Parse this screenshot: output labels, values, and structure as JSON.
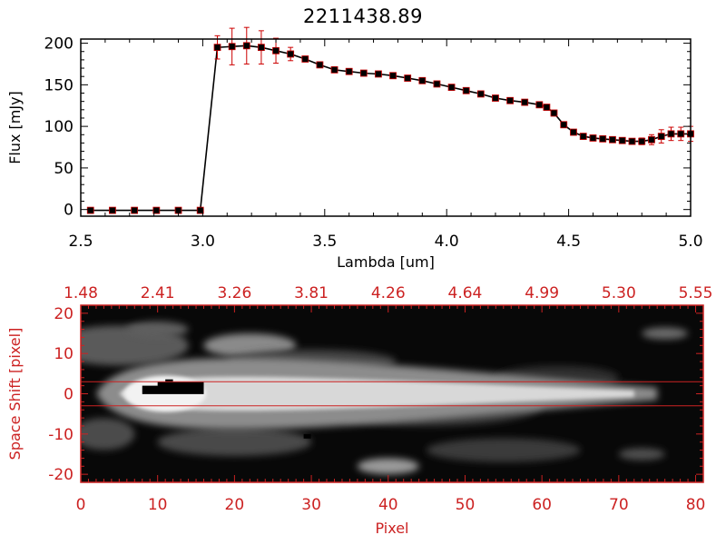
{
  "title": "2211438.89",
  "colors": {
    "axis": "#000000",
    "error_bar": "#cc0000",
    "marker": "#000000",
    "image_frame": "#cc2222",
    "image_text": "#cc2222",
    "guide_lines": "#cc2222"
  },
  "chart_data": [
    {
      "type": "line",
      "title": "2211438.89",
      "xlabel": "Lambda [um]",
      "ylabel": "Flux [mJy]",
      "xlim": [
        2.5,
        5.0
      ],
      "ylim": [
        -8,
        205
      ],
      "xticks": [
        "2.5",
        "3.0",
        "3.5",
        "4.0",
        "4.5",
        "5.0"
      ],
      "yticks": [
        "0",
        "50",
        "100",
        "150",
        "200"
      ],
      "xtick_values": [
        2.5,
        3.0,
        3.5,
        4.0,
        4.5,
        5.0
      ],
      "ytick_values": [
        0,
        50,
        100,
        150,
        200
      ],
      "grid": false,
      "series": [
        {
          "marker": "square",
          "x": [
            2.54,
            2.63,
            2.72,
            2.81,
            2.9,
            2.99,
            3.06,
            3.12,
            3.18,
            3.24,
            3.3,
            3.36,
            3.42,
            3.48,
            3.54,
            3.6,
            3.66,
            3.72,
            3.78,
            3.84,
            3.9,
            3.96,
            4.02,
            4.08,
            4.14,
            4.2,
            4.26,
            4.32,
            4.38,
            4.41,
            4.44,
            4.48,
            4.52,
            4.56,
            4.6,
            4.64,
            4.68,
            4.72,
            4.76,
            4.8,
            4.84,
            4.88,
            4.92,
            4.96,
            5.0
          ],
          "y": [
            -1,
            -1,
            -1,
            -1,
            -1,
            -1,
            195,
            196,
            197,
            195,
            191,
            187,
            181,
            174,
            168,
            166,
            164,
            163,
            161,
            158,
            155,
            151,
            147,
            143,
            139,
            134,
            131,
            129,
            126,
            123,
            116,
            102,
            93,
            88,
            86,
            85,
            84,
            83,
            82,
            82,
            84,
            88,
            91,
            91,
            91
          ],
          "yerr": [
            1,
            1,
            1,
            1,
            1,
            1,
            14,
            22,
            22,
            20,
            15,
            8,
            3,
            3,
            3,
            3,
            3,
            3,
            3,
            3,
            3,
            3,
            3,
            3,
            3,
            3,
            3,
            3,
            3,
            3,
            3,
            3,
            3,
            3,
            3,
            3,
            3,
            3,
            3,
            4,
            6,
            8,
            8,
            8,
            9
          ]
        }
      ]
    },
    {
      "type": "heatmap",
      "xlabel": "Pixel",
      "ylabel": "Space Shift [pixel]",
      "xlim": [
        0,
        81
      ],
      "ylim": [
        -22,
        22
      ],
      "xticks": [
        "0",
        "10",
        "20",
        "30",
        "40",
        "50",
        "60",
        "70",
        "80"
      ],
      "xtick_values": [
        0,
        10,
        20,
        30,
        40,
        50,
        60,
        70,
        80
      ],
      "yticks": [
        "-20",
        "-10",
        "0",
        "10",
        "20"
      ],
      "ytick_values": [
        -20,
        -10,
        0,
        10,
        20
      ],
      "top_axis_labels": [
        "1.48",
        "2.41",
        "3.26",
        "3.81",
        "4.26",
        "4.64",
        "4.99",
        "5.30",
        "5.55"
      ],
      "top_axis_positions": [
        0,
        10,
        20,
        30,
        40,
        50,
        60,
        70,
        80
      ],
      "guide_lines_y": [
        3,
        -3
      ],
      "colormap": "grayscale"
    }
  ]
}
